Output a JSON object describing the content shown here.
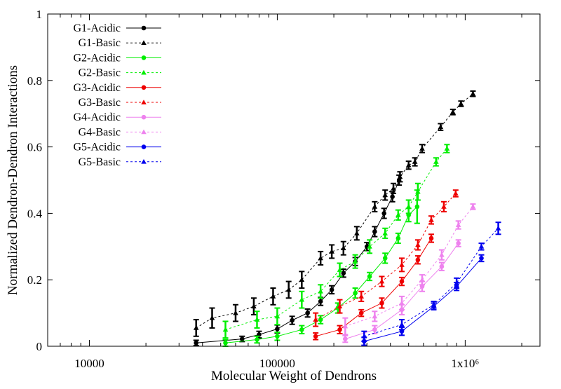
{
  "chart_data": {
    "type": "scatter",
    "xlabel": "Molecular Weight of Dendrons",
    "ylabel": "Normalized Dendron-Dendron Interactions",
    "xscale": "log",
    "xlim": [
      6000,
      2500000
    ],
    "ylim": [
      0,
      1
    ],
    "xticks": [
      {
        "value": 10000,
        "label": "10000"
      },
      {
        "value": 100000,
        "label": "100000"
      },
      {
        "value": 1000000,
        "label": "1x10⁶"
      }
    ],
    "yticks": [
      {
        "value": 0,
        "label": "0"
      },
      {
        "value": 0.2,
        "label": "0.2"
      },
      {
        "value": 0.4,
        "label": "0.4"
      },
      {
        "value": 0.6,
        "label": "0.6"
      },
      {
        "value": 0.8,
        "label": "0.8"
      },
      {
        "value": 1,
        "label": "1"
      }
    ],
    "grid": false,
    "legend_position": "top-left",
    "series": [
      {
        "name": "G1-Acidic",
        "color": "#000000",
        "dash": "solid",
        "marker": "circle",
        "points": [
          {
            "x": 37000,
            "y": 0.01,
            "err": 0.008
          },
          {
            "x": 65000,
            "y": 0.022,
            "err": 0.008
          },
          {
            "x": 80000,
            "y": 0.035,
            "err": 0.01
          },
          {
            "x": 100000,
            "y": 0.052,
            "err": 0.012
          },
          {
            "x": 120000,
            "y": 0.078,
            "err": 0.012
          },
          {
            "x": 145000,
            "y": 0.1,
            "err": 0.012
          },
          {
            "x": 170000,
            "y": 0.135,
            "err": 0.012
          },
          {
            "x": 195000,
            "y": 0.17,
            "err": 0.012
          },
          {
            "x": 225000,
            "y": 0.22,
            "err": 0.012
          },
          {
            "x": 260000,
            "y": 0.255,
            "err": 0.012
          },
          {
            "x": 300000,
            "y": 0.3,
            "err": 0.012
          },
          {
            "x": 330000,
            "y": 0.345,
            "err": 0.015
          },
          {
            "x": 370000,
            "y": 0.4,
            "err": 0.015
          },
          {
            "x": 410000,
            "y": 0.45,
            "err": 0.015
          },
          {
            "x": 445000,
            "y": 0.5,
            "err": 0.015
          }
        ]
      },
      {
        "name": "G1-Basic",
        "color": "#000000",
        "dash": "dotted",
        "marker": "triangle",
        "points": [
          {
            "x": 37000,
            "y": 0.055,
            "err": 0.025
          },
          {
            "x": 45000,
            "y": 0.085,
            "err": 0.03
          },
          {
            "x": 60000,
            "y": 0.1,
            "err": 0.025
          },
          {
            "x": 75000,
            "y": 0.12,
            "err": 0.025
          },
          {
            "x": 95000,
            "y": 0.15,
            "err": 0.025
          },
          {
            "x": 115000,
            "y": 0.17,
            "err": 0.025
          },
          {
            "x": 135000,
            "y": 0.2,
            "err": 0.025
          },
          {
            "x": 170000,
            "y": 0.265,
            "err": 0.02
          },
          {
            "x": 195000,
            "y": 0.285,
            "err": 0.02
          },
          {
            "x": 225000,
            "y": 0.295,
            "err": 0.02
          },
          {
            "x": 265000,
            "y": 0.34,
            "err": 0.02
          },
          {
            "x": 330000,
            "y": 0.42,
            "err": 0.015
          },
          {
            "x": 375000,
            "y": 0.455,
            "err": 0.015
          },
          {
            "x": 415000,
            "y": 0.475,
            "err": 0.015
          },
          {
            "x": 450000,
            "y": 0.51,
            "err": 0.015
          },
          {
            "x": 500000,
            "y": 0.545,
            "err": 0.012
          },
          {
            "x": 540000,
            "y": 0.555,
            "err": 0.012
          },
          {
            "x": 590000,
            "y": 0.595,
            "err": 0.012
          },
          {
            "x": 740000,
            "y": 0.66,
            "err": 0.01
          },
          {
            "x": 860000,
            "y": 0.705,
            "err": 0.008
          },
          {
            "x": 950000,
            "y": 0.73,
            "err": 0.008
          },
          {
            "x": 1100000,
            "y": 0.76,
            "err": 0.008
          }
        ]
      },
      {
        "name": "G2-Acidic",
        "color": "#00ee00",
        "dash": "solid",
        "marker": "circle",
        "points": [
          {
            "x": 53000,
            "y": 0.01,
            "err": 0.01
          },
          {
            "x": 78000,
            "y": 0.02,
            "err": 0.01
          },
          {
            "x": 100000,
            "y": 0.03,
            "err": 0.012
          },
          {
            "x": 135000,
            "y": 0.05,
            "err": 0.012
          },
          {
            "x": 170000,
            "y": 0.08,
            "err": 0.012
          },
          {
            "x": 210000,
            "y": 0.115,
            "err": 0.015
          },
          {
            "x": 260000,
            "y": 0.16,
            "err": 0.015
          },
          {
            "x": 310000,
            "y": 0.21,
            "err": 0.012
          },
          {
            "x": 375000,
            "y": 0.265,
            "err": 0.015
          },
          {
            "x": 440000,
            "y": 0.325,
            "err": 0.015
          },
          {
            "x": 500000,
            "y": 0.395,
            "err": 0.02
          },
          {
            "x": 555000,
            "y": 0.42,
            "err": 0.05
          }
        ]
      },
      {
        "name": "G2-Basic",
        "color": "#00ee00",
        "dash": "dotted",
        "marker": "triangle",
        "points": [
          {
            "x": 53000,
            "y": 0.05,
            "err": 0.025
          },
          {
            "x": 78000,
            "y": 0.08,
            "err": 0.025
          },
          {
            "x": 100000,
            "y": 0.09,
            "err": 0.025
          },
          {
            "x": 135000,
            "y": 0.14,
            "err": 0.025
          },
          {
            "x": 170000,
            "y": 0.165,
            "err": 0.02
          },
          {
            "x": 215000,
            "y": 0.23,
            "err": 0.02
          },
          {
            "x": 260000,
            "y": 0.255,
            "err": 0.02
          },
          {
            "x": 310000,
            "y": 0.3,
            "err": 0.02
          },
          {
            "x": 375000,
            "y": 0.34,
            "err": 0.015
          },
          {
            "x": 440000,
            "y": 0.395,
            "err": 0.015
          },
          {
            "x": 500000,
            "y": 0.42,
            "err": 0.02
          },
          {
            "x": 560000,
            "y": 0.465,
            "err": 0.025
          },
          {
            "x": 700000,
            "y": 0.555,
            "err": 0.012
          },
          {
            "x": 800000,
            "y": 0.595,
            "err": 0.012
          }
        ]
      },
      {
        "name": "G3-Acidic",
        "color": "#ee0000",
        "dash": "solid",
        "marker": "circle",
        "points": [
          {
            "x": 160000,
            "y": 0.03,
            "err": 0.01
          },
          {
            "x": 215000,
            "y": 0.05,
            "err": 0.012
          },
          {
            "x": 280000,
            "y": 0.1,
            "err": 0.01
          },
          {
            "x": 360000,
            "y": 0.13,
            "err": 0.015
          },
          {
            "x": 460000,
            "y": 0.195,
            "err": 0.012
          },
          {
            "x": 560000,
            "y": 0.26,
            "err": 0.012
          },
          {
            "x": 660000,
            "y": 0.325,
            "err": 0.012
          }
        ]
      },
      {
        "name": "G3-Basic",
        "color": "#ee0000",
        "dash": "dotted",
        "marker": "triangle",
        "points": [
          {
            "x": 160000,
            "y": 0.08,
            "err": 0.02
          },
          {
            "x": 215000,
            "y": 0.12,
            "err": 0.02
          },
          {
            "x": 280000,
            "y": 0.15,
            "err": 0.015
          },
          {
            "x": 360000,
            "y": 0.195,
            "err": 0.015
          },
          {
            "x": 460000,
            "y": 0.245,
            "err": 0.02
          },
          {
            "x": 560000,
            "y": 0.305,
            "err": 0.015
          },
          {
            "x": 660000,
            "y": 0.38,
            "err": 0.012
          },
          {
            "x": 770000,
            "y": 0.42,
            "err": 0.015
          },
          {
            "x": 890000,
            "y": 0.46,
            "err": 0.01
          }
        ]
      },
      {
        "name": "G4-Acidic",
        "color": "#ee82ee",
        "dash": "solid",
        "marker": "circle",
        "points": [
          {
            "x": 230000,
            "y": 0.022,
            "err": 0.01
          },
          {
            "x": 330000,
            "y": 0.05,
            "err": 0.012
          },
          {
            "x": 460000,
            "y": 0.11,
            "err": 0.015
          },
          {
            "x": 590000,
            "y": 0.18,
            "err": 0.015
          },
          {
            "x": 750000,
            "y": 0.24,
            "err": 0.012
          },
          {
            "x": 920000,
            "y": 0.31,
            "err": 0.01
          }
        ]
      },
      {
        "name": "G4-Basic",
        "color": "#ee82ee",
        "dash": "dotted",
        "marker": "triangle",
        "points": [
          {
            "x": 230000,
            "y": 0.06,
            "err": 0.025
          },
          {
            "x": 330000,
            "y": 0.09,
            "err": 0.015
          },
          {
            "x": 460000,
            "y": 0.13,
            "err": 0.02
          },
          {
            "x": 590000,
            "y": 0.2,
            "err": 0.015
          },
          {
            "x": 750000,
            "y": 0.275,
            "err": 0.015
          },
          {
            "x": 920000,
            "y": 0.365,
            "err": 0.012
          },
          {
            "x": 1100000,
            "y": 0.42,
            "err": 0.008
          }
        ]
      },
      {
        "name": "G5-Acidic",
        "color": "#0000ee",
        "dash": "solid",
        "marker": "circle",
        "points": [
          {
            "x": 290000,
            "y": 0.015,
            "err": 0.012
          },
          {
            "x": 460000,
            "y": 0.045,
            "err": 0.012
          },
          {
            "x": 680000,
            "y": 0.12,
            "err": 0.01
          },
          {
            "x": 900000,
            "y": 0.18,
            "err": 0.012
          },
          {
            "x": 1220000,
            "y": 0.265,
            "err": 0.01
          }
        ]
      },
      {
        "name": "G5-Basic",
        "color": "#0000ee",
        "dash": "dotted",
        "marker": "triangle",
        "points": [
          {
            "x": 290000,
            "y": 0.03,
            "err": 0.015
          },
          {
            "x": 460000,
            "y": 0.065,
            "err": 0.015
          },
          {
            "x": 680000,
            "y": 0.125,
            "err": 0.01
          },
          {
            "x": 900000,
            "y": 0.19,
            "err": 0.015
          },
          {
            "x": 1220000,
            "y": 0.3,
            "err": 0.01
          },
          {
            "x": 1500000,
            "y": 0.355,
            "err": 0.018
          }
        ]
      }
    ]
  }
}
